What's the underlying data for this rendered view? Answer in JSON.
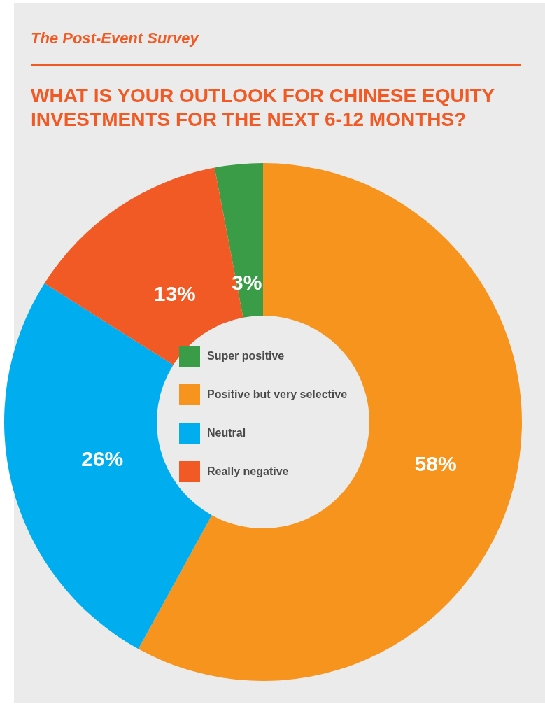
{
  "chart_data": {
    "type": "donut",
    "subtitle": "The Post-Event Survey",
    "title": "WHAT IS YOUR OUTLOOK FOR CHINESE EQUITY INVESTMENTS FOR THE NEXT 6-12 MONTHS?",
    "categories": [
      "Super positive",
      "Positive but very selective",
      "Neutral",
      "Really negative"
    ],
    "values": [
      3,
      58,
      26,
      13
    ],
    "colors": [
      "#3a9c47",
      "#f7941d",
      "#00aeef",
      "#f15a24"
    ],
    "value_labels": [
      "3%",
      "58%",
      "26%",
      "13%"
    ],
    "legend": "center"
  }
}
